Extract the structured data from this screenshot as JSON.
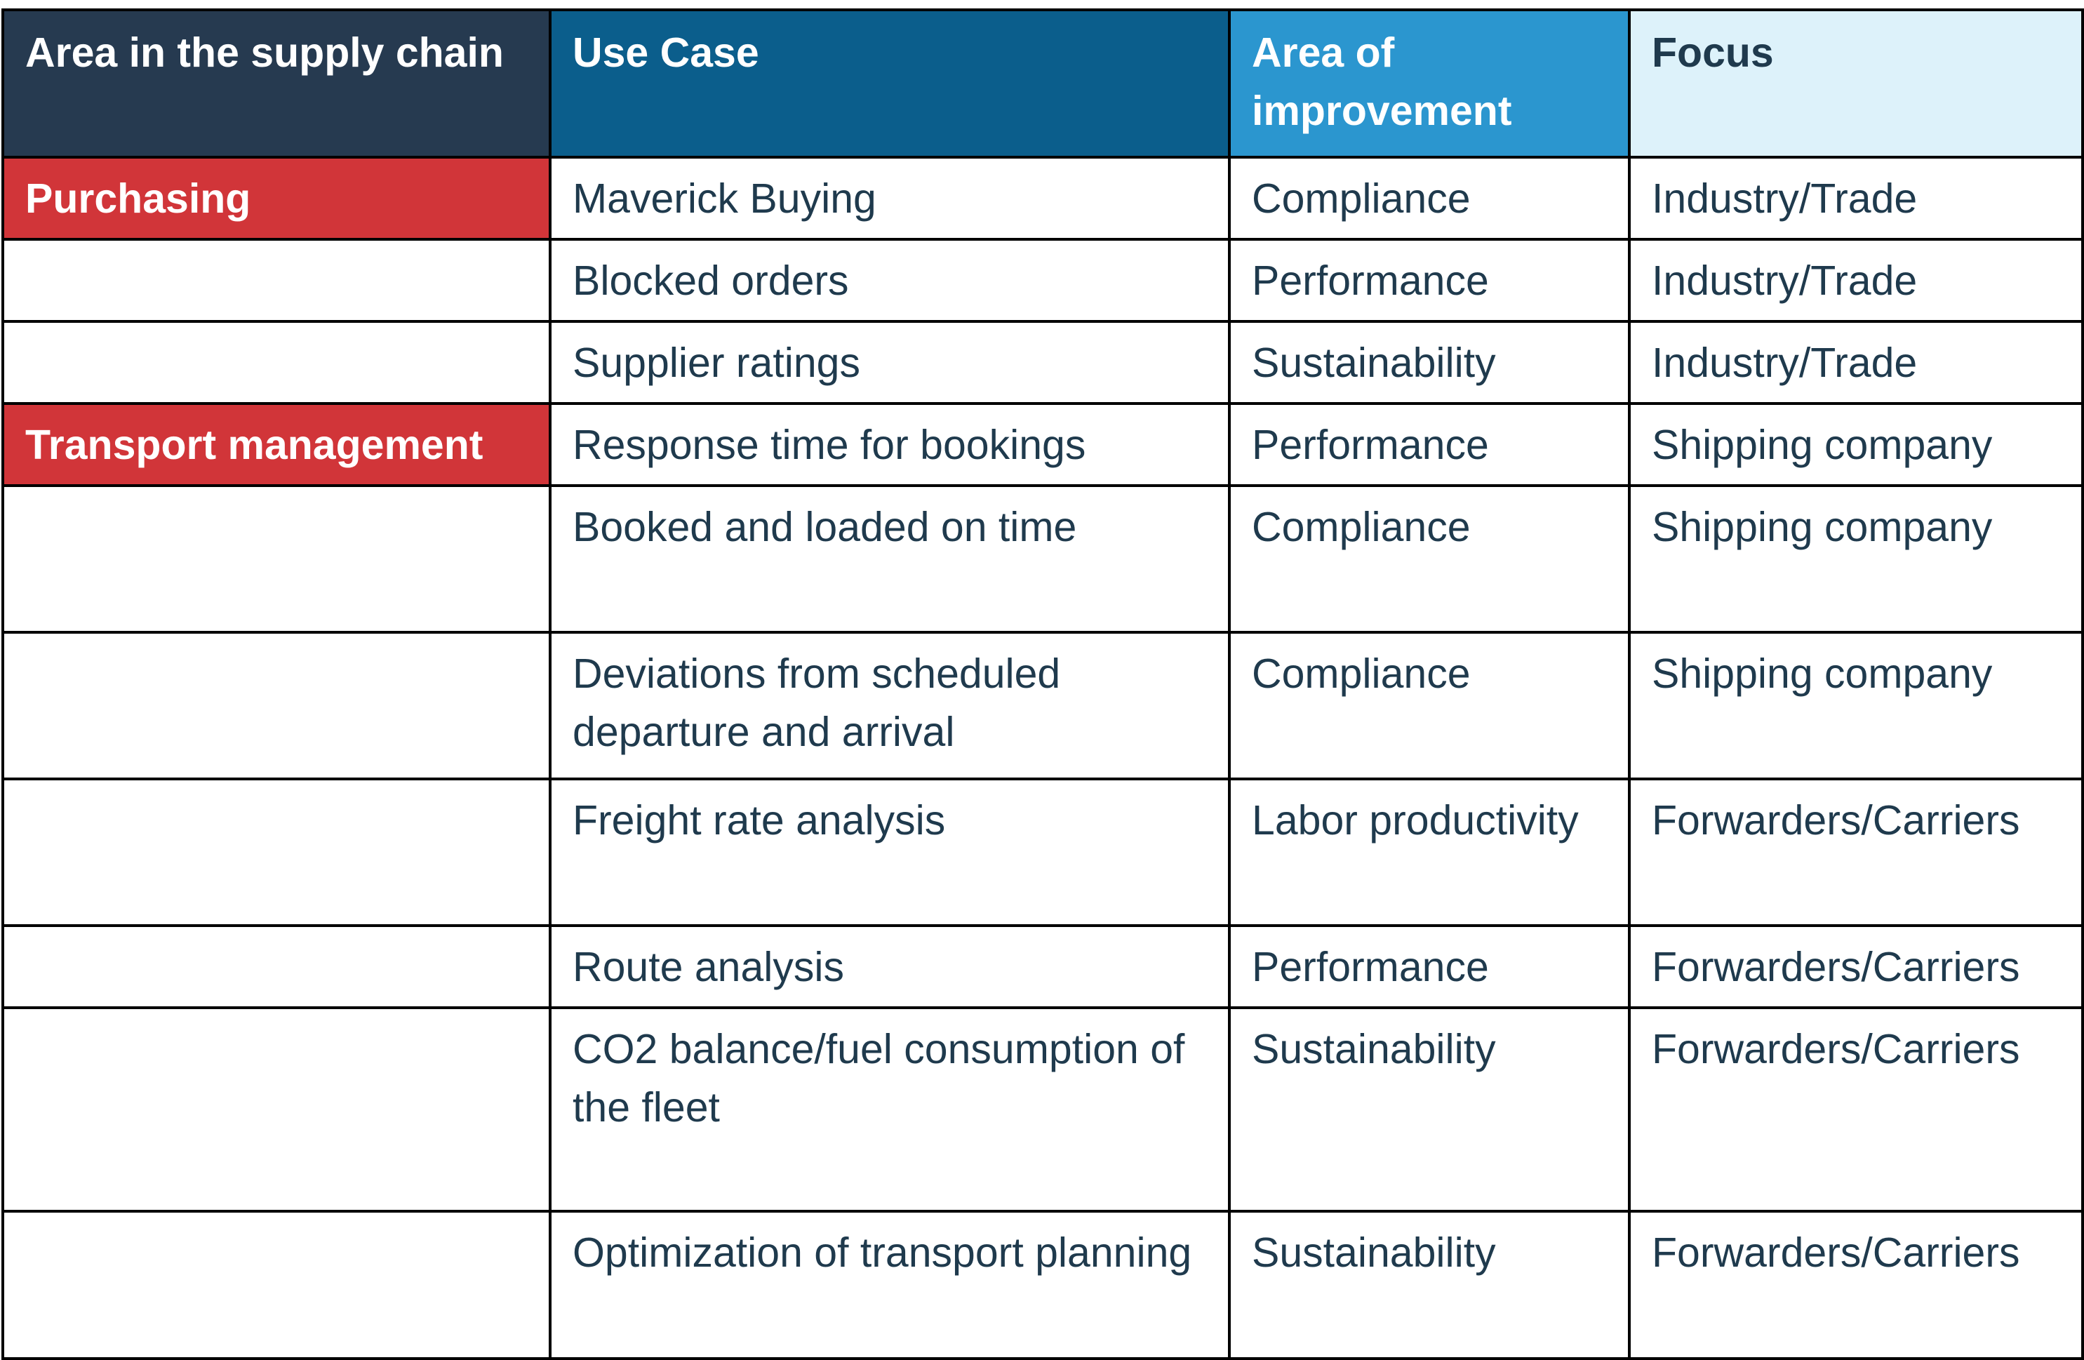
{
  "table": {
    "headers": [
      "Area in the supply chain",
      "Use Case",
      "Area of improvement",
      "Focus"
    ],
    "rows": [
      {
        "area": "Purchasing",
        "use_case": "Maverick Buying",
        "improvement": "Compliance",
        "focus": "Industry/Trade"
      },
      {
        "area": "",
        "use_case": "Blocked orders",
        "improvement": "Performance",
        "focus": "Industry/Trade"
      },
      {
        "area": "",
        "use_case": "Supplier ratings",
        "improvement": "Sustainability",
        "focus": "Industry/Trade"
      },
      {
        "area": "Transport management",
        "use_case": "Response time for bookings",
        "improvement": "Performance",
        "focus": "Shipping company"
      },
      {
        "area": "",
        "use_case": "Booked and loaded on time",
        "improvement": "Compliance",
        "focus": "Shipping company"
      },
      {
        "area": "",
        "use_case": "Deviations from scheduled departure and arrival",
        "improvement": "Compliance",
        "focus": "Shipping company"
      },
      {
        "area": "",
        "use_case": "Freight rate analysis",
        "improvement": "Labor productivity",
        "focus": "Forwarders/Carriers"
      },
      {
        "area": "",
        "use_case": "Route analysis",
        "improvement": "Performance",
        "focus": "Forwarders/Carriers"
      },
      {
        "area": "",
        "use_case": "CO2 balance/fuel consumption of the fleet",
        "improvement": "Sustainability",
        "focus": "Forwarders/Carriers"
      },
      {
        "area": "",
        "use_case": "Optimization of transport planning",
        "improvement": "Sustainability",
        "focus": "Forwarders/Carriers"
      }
    ]
  },
  "colors": {
    "header_area": "#263a50",
    "header_use_case": "#0b5e8c",
    "header_improvement": "#2b96cf",
    "header_focus": "#ddf2fa",
    "area_highlight": "#d13539",
    "body_text": "#1f3a4d"
  }
}
